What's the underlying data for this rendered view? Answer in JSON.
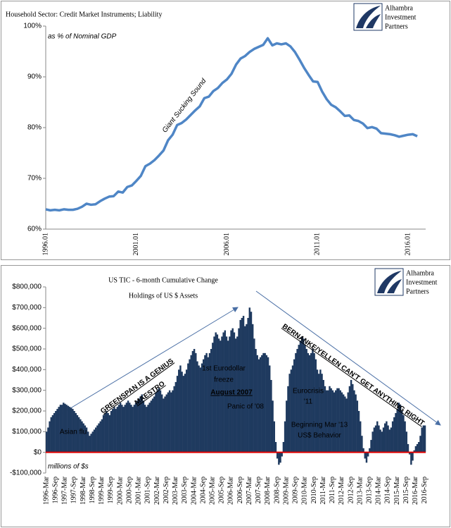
{
  "chart_data": [
    {
      "type": "line",
      "title": "Household Sector: Credit Market Instruments; Liability",
      "logo": [
        "Alhambra",
        "Investment",
        "Partners"
      ],
      "annotations": [
        "as % of Nominal GDP",
        "Giant Sucking Sound"
      ],
      "categories": [
        "1996.01",
        null,
        null,
        null,
        null,
        null,
        null,
        null,
        null,
        null,
        null,
        null,
        null,
        null,
        null,
        null,
        null,
        null,
        null,
        null,
        "2001.01",
        null,
        null,
        null,
        null,
        null,
        null,
        null,
        null,
        null,
        null,
        null,
        null,
        null,
        null,
        null,
        null,
        null,
        null,
        null,
        "2006.01",
        null,
        null,
        null,
        null,
        null,
        null,
        null,
        null,
        null,
        null,
        null,
        null,
        null,
        null,
        null,
        null,
        null,
        null,
        null,
        "2011.01",
        null,
        null,
        null,
        null,
        null,
        null,
        null,
        null,
        null,
        null,
        null,
        null,
        null,
        null,
        null,
        null,
        null,
        null,
        null,
        "2016.01",
        null,
        null
      ],
      "values": [
        63.9,
        63.7,
        63.8,
        63.7,
        63.9,
        63.8,
        63.8,
        64.0,
        64.4,
        65.0,
        64.8,
        64.9,
        65.5,
        66.0,
        66.4,
        66.5,
        67.4,
        67.2,
        68.3,
        68.6,
        69.5,
        70.5,
        72.4,
        72.9,
        73.6,
        74.5,
        75.5,
        77.5,
        78.6,
        80.5,
        80.9,
        81.6,
        82.5,
        83.4,
        84.2,
        85.8,
        86.1,
        87.2,
        87.8,
        88.8,
        89.5,
        90.6,
        92.4,
        93.6,
        94.1,
        94.9,
        95.5,
        95.9,
        96.3,
        97.6,
        96.2,
        96.6,
        96.4,
        96.6,
        96.0,
        94.9,
        93.4,
        91.8,
        90.4,
        89.1,
        89.0,
        87.1,
        85.6,
        84.5,
        84.0,
        83.2,
        82.3,
        82.4,
        81.5,
        81.3,
        80.8,
        79.9,
        80.1,
        79.8,
        78.9,
        78.8,
        78.7,
        78.5,
        78.2,
        78.4,
        78.6,
        78.7,
        78.3
      ],
      "color": "#4f86c6",
      "ylim": [
        60,
        100
      ],
      "yticks": [
        {
          "value": 60,
          "label": "60%"
        },
        {
          "value": 70,
          "label": "70%"
        },
        {
          "value": 80,
          "label": "80%"
        },
        {
          "value": 90,
          "label": "90%"
        },
        {
          "value": 100,
          "label": "100%"
        }
      ],
      "grid": false
    },
    {
      "type": "bar",
      "title": [
        "US TIC - 6-month Cumulative Change",
        "Holdings of US $ Assets"
      ],
      "logo": [
        "Alhambra",
        "Investment",
        "Partners"
      ],
      "annotations": [
        "GREENSPAN IS A GENIUS",
        "MAESTRO",
        "BERNANKE/YELLEN CAN'T GET ANYTHING RIGHT",
        "1st Eurodollar",
        "freeze",
        "August 2007",
        "Panic of '08",
        "Eurocrisis",
        "'11",
        "Beginning Mar '13",
        "US$ Behavior",
        "Asian flu",
        "millions of $s"
      ],
      "categories": [
        "1996-Mar",
        null,
        null,
        null,
        null,
        null,
        "1996-Sep",
        null,
        null,
        null,
        null,
        null,
        "1997-Mar",
        null,
        null,
        null,
        null,
        null,
        "1997-Sep",
        null,
        null,
        null,
        null,
        null,
        "1998-Mar",
        null,
        null,
        null,
        null,
        null,
        "1998-Sep",
        null,
        null,
        null,
        null,
        null,
        "1999-Mar",
        null,
        null,
        null,
        null,
        null,
        "1999-Sep",
        null,
        null,
        null,
        null,
        null,
        "2000-Mar",
        null,
        null,
        null,
        null,
        null,
        "2000-Sep",
        null,
        null,
        null,
        null,
        null,
        "2001-Mar",
        null,
        null,
        null,
        null,
        null,
        "2001-Sep",
        null,
        null,
        null,
        null,
        null,
        "2002-Mar",
        null,
        null,
        null,
        null,
        null,
        "2002-Sep",
        null,
        null,
        null,
        null,
        null,
        "2003-Mar",
        null,
        null,
        null,
        null,
        null,
        "2003-Sep",
        null,
        null,
        null,
        null,
        null,
        "2004-Mar",
        null,
        null,
        null,
        null,
        null,
        "2004-Sep",
        null,
        null,
        null,
        null,
        null,
        "2005-Mar",
        null,
        null,
        null,
        null,
        null,
        "2005-Sep",
        null,
        null,
        null,
        null,
        null,
        "2006-Mar",
        null,
        null,
        null,
        null,
        null,
        "2006-Sep",
        null,
        null,
        null,
        null,
        null,
        "2007-Mar",
        null,
        null,
        null,
        null,
        null,
        "2007-Sep",
        null,
        null,
        null,
        null,
        null,
        "2008-Mar",
        null,
        null,
        null,
        null,
        null,
        "2008-Sep",
        null,
        null,
        null,
        null,
        null,
        "2009-Mar",
        null,
        null,
        null,
        null,
        null,
        "2009-Sep",
        null,
        null,
        null,
        null,
        null,
        "2010-Mar",
        null,
        null,
        null,
        null,
        null,
        "2010-Sep",
        null,
        null,
        null,
        null,
        null,
        "2011-Mar",
        null,
        null,
        null,
        null,
        null,
        "2011-Sep",
        null,
        null,
        null,
        null,
        null,
        "2012-Mar",
        null,
        null,
        null,
        null,
        null,
        "2012-Sep",
        null,
        null,
        null,
        null,
        null,
        "2013-Mar",
        null,
        null,
        null,
        null,
        null,
        "2013-Sep",
        null,
        null,
        null,
        null,
        null,
        "2014-Mar",
        null,
        null,
        null,
        null,
        null,
        "2014-Sep",
        null,
        null,
        null,
        null,
        null,
        "2015-Mar",
        null,
        null,
        null,
        null,
        null,
        "2015-Sep",
        null,
        null,
        null,
        null,
        null,
        "2016-Mar",
        null,
        null,
        null,
        null,
        null,
        "2016-Sep"
      ],
      "values": [
        100000,
        120000,
        150000,
        170000,
        180000,
        190000,
        200000,
        210000,
        220000,
        230000,
        230000,
        240000,
        235000,
        230000,
        225000,
        220000,
        215000,
        210000,
        200000,
        190000,
        180000,
        170000,
        160000,
        150000,
        140000,
        130000,
        120000,
        100000,
        80000,
        90000,
        100000,
        110000,
        120000,
        130000,
        140000,
        150000,
        160000,
        180000,
        190000,
        200000,
        190000,
        180000,
        200000,
        210000,
        220000,
        210000,
        220000,
        230000,
        240000,
        230000,
        220000,
        230000,
        240000,
        250000,
        240000,
        230000,
        220000,
        230000,
        240000,
        250000,
        260000,
        270000,
        280000,
        250000,
        230000,
        220000,
        230000,
        240000,
        250000,
        260000,
        270000,
        290000,
        300000,
        310000,
        300000,
        280000,
        260000,
        270000,
        280000,
        290000,
        300000,
        290000,
        300000,
        320000,
        340000,
        370000,
        400000,
        420000,
        390000,
        370000,
        380000,
        400000,
        430000,
        450000,
        470000,
        490000,
        500000,
        480000,
        440000,
        420000,
        410000,
        430000,
        450000,
        470000,
        480000,
        460000,
        480000,
        500000,
        530000,
        560000,
        580000,
        570000,
        550000,
        540000,
        560000,
        580000,
        590000,
        560000,
        540000,
        560000,
        590000,
        600000,
        580000,
        550000,
        560000,
        600000,
        640000,
        650000,
        660000,
        610000,
        620000,
        650000,
        700000,
        680000,
        620000,
        550000,
        500000,
        470000,
        450000,
        460000,
        470000,
        480000,
        480000,
        470000,
        460000,
        420000,
        350000,
        250000,
        150000,
        50000,
        -30000,
        -60000,
        -50000,
        -20000,
        50000,
        150000,
        250000,
        320000,
        380000,
        400000,
        420000,
        450000,
        480000,
        500000,
        520000,
        540000,
        560000,
        550000,
        520000,
        500000,
        480000,
        470000,
        480000,
        500000,
        480000,
        450000,
        400000,
        380000,
        400000,
        380000,
        350000,
        320000,
        300000,
        300000,
        320000,
        310000,
        300000,
        290000,
        300000,
        310000,
        310000,
        300000,
        290000,
        280000,
        270000,
        260000,
        290000,
        320000,
        350000,
        330000,
        300000,
        280000,
        250000,
        200000,
        150000,
        80000,
        20000,
        -30000,
        -50000,
        -20000,
        20000,
        60000,
        100000,
        120000,
        130000,
        150000,
        130000,
        110000,
        100000,
        120000,
        140000,
        150000,
        130000,
        110000,
        120000,
        150000,
        170000,
        190000,
        210000,
        240000,
        230000,
        200000,
        180000,
        150000,
        100000,
        40000,
        -10000,
        -60000,
        -40000,
        10000,
        30000,
        40000,
        50000,
        80000,
        120000,
        130000,
        130000
      ],
      "color": "#1f3a5f",
      "baseline_color": "#e00000",
      "ylim": [
        -100000,
        800000
      ],
      "yticks": [
        {
          "value": -100000,
          "label": "-$100,000"
        },
        {
          "value": 0,
          "label": "$0"
        },
        {
          "value": 100000,
          "label": "$100,000"
        },
        {
          "value": 200000,
          "label": "$200,000"
        },
        {
          "value": 300000,
          "label": "$300,000"
        },
        {
          "value": 400000,
          "label": "$400,000"
        },
        {
          "value": 500000,
          "label": "$500,000"
        },
        {
          "value": 600000,
          "label": "$600,000"
        },
        {
          "value": 700000,
          "label": "$700,000"
        },
        {
          "value": 800000,
          "label": "$800,000"
        }
      ],
      "grid": false
    }
  ]
}
